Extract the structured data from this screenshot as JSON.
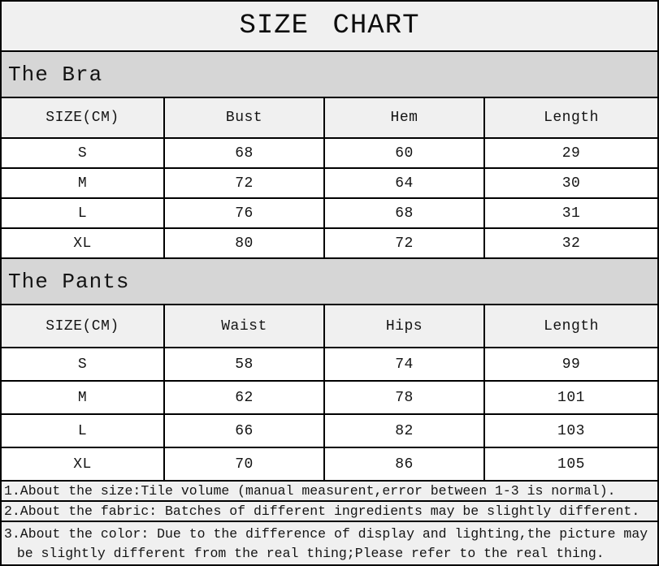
{
  "page": {
    "title": "SIZE CHART"
  },
  "colors": {
    "title_bg": "#f0f0f0",
    "section_band_bg": "#d6d6d6",
    "header_row_bg": "#f0f0f0",
    "data_row_bg": "#ffffff",
    "note_bg": "#f0f0f0",
    "border": "#000000",
    "text": "#141414"
  },
  "sections": [
    {
      "name": "The Bra",
      "columns": [
        "SIZE(CM)",
        "Bust",
        "Hem",
        "Length"
      ],
      "rows": [
        [
          "S",
          "68",
          "60",
          "29"
        ],
        [
          "M",
          "72",
          "64",
          "30"
        ],
        [
          "L",
          "76",
          "68",
          "31"
        ],
        [
          "XL",
          "80",
          "72",
          "32"
        ]
      ]
    },
    {
      "name": "The Pants",
      "columns": [
        "SIZE(CM)",
        "Waist",
        "Hips",
        "Length"
      ],
      "rows": [
        [
          "S",
          "58",
          "74",
          "99"
        ],
        [
          "M",
          "62",
          "78",
          "101"
        ],
        [
          "L",
          "66",
          "82",
          "103"
        ],
        [
          "XL",
          "70",
          "86",
          "105"
        ]
      ]
    }
  ],
  "notes": [
    "1.About the size:Tile volume (manual measurent,error between 1-3 is normal).",
    "2.About the fabric: Batches of different ingredients may be slightly different.",
    "3.About the color: Due to the difference of display and lighting,the picture may be slightly different from the real thing;Please refer to the real thing."
  ]
}
